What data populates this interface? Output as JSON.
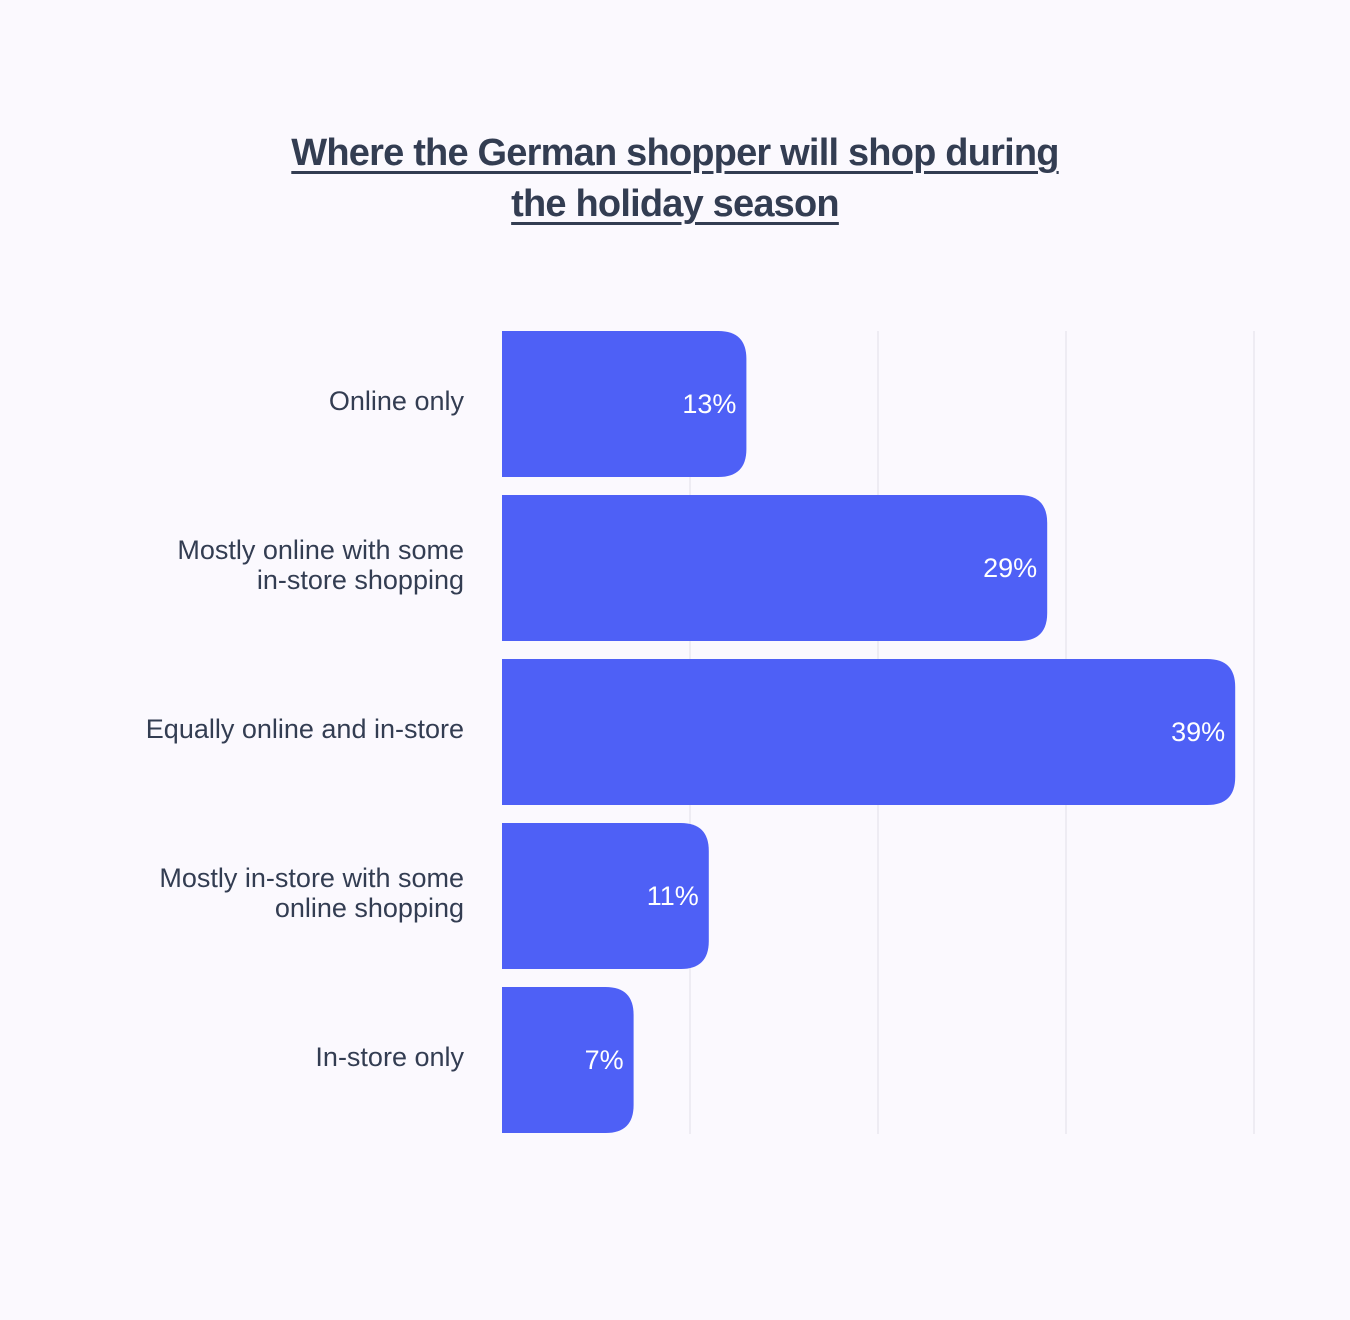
{
  "chart_data": {
    "type": "bar",
    "orientation": "horizontal",
    "title_lines": [
      "Where the German shopper will shop during",
      "the holiday season"
    ],
    "categories": [
      [
        "Online only"
      ],
      [
        "Mostly online with some",
        "in-store shopping"
      ],
      [
        "Equally online and in-store"
      ],
      [
        "Mostly in-store with some",
        "online shopping"
      ],
      [
        "In-store only"
      ]
    ],
    "values": [
      13,
      29,
      39,
      11,
      7
    ],
    "value_labels": [
      "13%",
      "29%",
      "39%",
      "11%",
      "7%"
    ],
    "xlim": [
      0,
      40
    ],
    "grid": true,
    "colors": {
      "bar": "#4e60f6",
      "grid": "#e9e8ef",
      "text": "#333d52",
      "background": "#fbf9fe"
    }
  }
}
